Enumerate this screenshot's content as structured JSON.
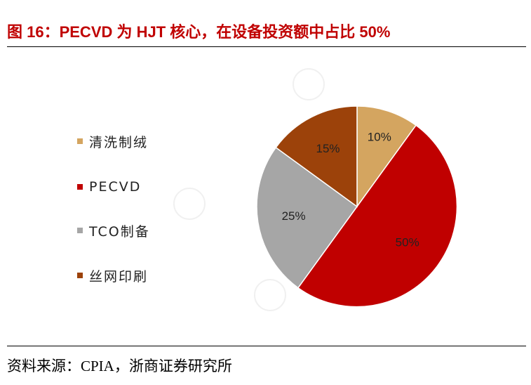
{
  "title": "图 16：PECVD 为 HJT 核心，在设备投资额中占比 50%",
  "source": "资料来源：CPIA，浙商证券研究所",
  "chart_data": {
    "type": "pie",
    "title": "",
    "legend_position": "left",
    "slices": [
      {
        "label": "清洗制绒",
        "value": 10,
        "value_label": "10%",
        "color": "#D4A560"
      },
      {
        "label": "PECVD",
        "value": 50,
        "value_label": "50%",
        "color": "#C00000"
      },
      {
        "label": "TCO制备",
        "value": 25,
        "value_label": "25%",
        "color": "#A6A6A6"
      },
      {
        "label": "丝网印刷",
        "value": 15,
        "value_label": "15%",
        "color": "#9C420A"
      }
    ],
    "start_angle_deg": 0,
    "direction": "clockwise"
  }
}
